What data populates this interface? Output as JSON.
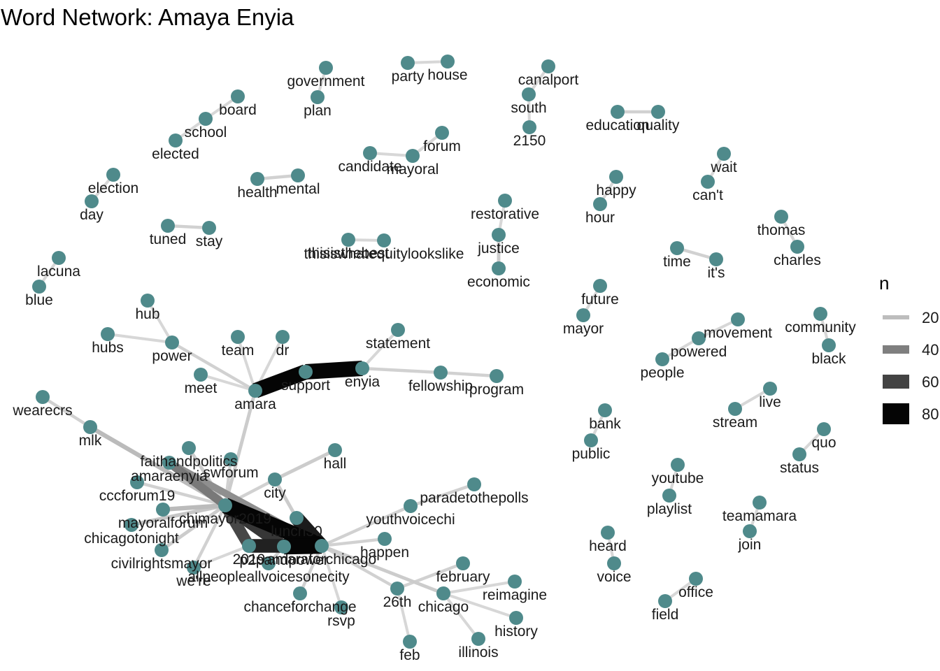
{
  "title": "Word Network: Amaya Enyia",
  "legend": {
    "title": "n",
    "items": [
      {
        "label": "20",
        "value": 20,
        "color": "#bdbdbd"
      },
      {
        "label": "40",
        "value": 40,
        "color": "#7f7f7f"
      },
      {
        "label": "60",
        "value": 60,
        "color": "#434343"
      },
      {
        "label": "80",
        "value": 80,
        "color": "#050505"
      }
    ]
  },
  "node_color": "#4f8a8b",
  "nodes": [
    {
      "id": "government",
      "label": "government"
    },
    {
      "id": "plan",
      "label": "plan"
    },
    {
      "id": "party",
      "label": "party"
    },
    {
      "id": "house",
      "label": "house"
    },
    {
      "id": "canalport",
      "label": "canalport"
    },
    {
      "id": "south",
      "label": "south"
    },
    {
      "id": "2150",
      "label": "2150"
    },
    {
      "id": "board",
      "label": "board"
    },
    {
      "id": "school",
      "label": "school"
    },
    {
      "id": "elected",
      "label": "elected"
    },
    {
      "id": "education",
      "label": "education"
    },
    {
      "id": "quality",
      "label": "quality"
    },
    {
      "id": "forum",
      "label": "forum"
    },
    {
      "id": "candidate",
      "label": "candidate"
    },
    {
      "id": "mayoral",
      "label": "mayoral"
    },
    {
      "id": "wait",
      "label": "wait"
    },
    {
      "id": "cant",
      "label": "can't"
    },
    {
      "id": "election",
      "label": "election"
    },
    {
      "id": "day",
      "label": "day"
    },
    {
      "id": "health",
      "label": "health"
    },
    {
      "id": "mental",
      "label": "mental"
    },
    {
      "id": "happy",
      "label": "happy"
    },
    {
      "id": "hour",
      "label": "hour"
    },
    {
      "id": "restorative",
      "label": "restorative"
    },
    {
      "id": "justice",
      "label": "justice"
    },
    {
      "id": "economic",
      "label": "economic"
    },
    {
      "id": "tuned",
      "label": "tuned"
    },
    {
      "id": "stay",
      "label": "stay"
    },
    {
      "id": "thomas",
      "label": "thomas"
    },
    {
      "id": "charles",
      "label": "charles"
    },
    {
      "id": "thisisthebest",
      "label": "thisisthebest"
    },
    {
      "id": "thisiswhatequitylookslike",
      "label": "thisiswhatequitylookslike"
    },
    {
      "id": "time",
      "label": "time"
    },
    {
      "id": "its",
      "label": "it's"
    },
    {
      "id": "lacuna",
      "label": "lacuna"
    },
    {
      "id": "blue",
      "label": "blue"
    },
    {
      "id": "future",
      "label": "future"
    },
    {
      "id": "mayor",
      "label": "mayor"
    },
    {
      "id": "hub",
      "label": "hub"
    },
    {
      "id": "hubs",
      "label": "hubs"
    },
    {
      "id": "power",
      "label": "power"
    },
    {
      "id": "team",
      "label": "team"
    },
    {
      "id": "dr",
      "label": "dr"
    },
    {
      "id": "statement",
      "label": "statement"
    },
    {
      "id": "movement",
      "label": "movement"
    },
    {
      "id": "community",
      "label": "community"
    },
    {
      "id": "black",
      "label": "black"
    },
    {
      "id": "powered",
      "label": "powered"
    },
    {
      "id": "people",
      "label": "people"
    },
    {
      "id": "meet",
      "label": "meet"
    },
    {
      "id": "support",
      "label": "support"
    },
    {
      "id": "enyia",
      "label": "enyia"
    },
    {
      "id": "fellowship",
      "label": "fellowship"
    },
    {
      "id": "program",
      "label": "program"
    },
    {
      "id": "amara",
      "label": "amara"
    },
    {
      "id": "live",
      "label": "live"
    },
    {
      "id": "stream",
      "label": "stream"
    },
    {
      "id": "wearecrs",
      "label": "wearecrs"
    },
    {
      "id": "bank",
      "label": "bank"
    },
    {
      "id": "public",
      "label": "public"
    },
    {
      "id": "quo",
      "label": "quo"
    },
    {
      "id": "status",
      "label": "status"
    },
    {
      "id": "mlk",
      "label": "mlk"
    },
    {
      "id": "faithandpolitics",
      "label": "faithandpolitics"
    },
    {
      "id": "hall",
      "label": "hall"
    },
    {
      "id": "swforum",
      "label": "swforum"
    },
    {
      "id": "amaraenyia",
      "label": "amaraenyia"
    },
    {
      "id": "youtube",
      "label": "youtube"
    },
    {
      "id": "playlist",
      "label": "playlist"
    },
    {
      "id": "city",
      "label": "city"
    },
    {
      "id": "cccforum19",
      "label": "cccforum19"
    },
    {
      "id": "paradetothepolls",
      "label": "paradetothepolls"
    },
    {
      "id": "teamamara",
      "label": "teamamara"
    },
    {
      "id": "join",
      "label": "join"
    },
    {
      "id": "youthvoicechi",
      "label": "youthvoicechi"
    },
    {
      "id": "mayoralforum",
      "label": "mayoralforum"
    },
    {
      "id": "chimayor2019",
      "label": "chimayor2019"
    },
    {
      "id": "lunch30",
      "label": "lunch30"
    },
    {
      "id": "chicagotonight",
      "label": "chicagotonight"
    },
    {
      "id": "heard",
      "label": "heard"
    },
    {
      "id": "happen",
      "label": "happen"
    },
    {
      "id": "voice",
      "label": "voice"
    },
    {
      "id": "civilrightsmayor",
      "label": "civilrightsmayor"
    },
    {
      "id": "amaraforchicago",
      "label": "amaraforchicago"
    },
    {
      "id": "p2pandpower",
      "label": "p2pandpower"
    },
    {
      "id": "2019",
      "label": "2019"
    },
    {
      "id": "were",
      "label": "we're"
    },
    {
      "id": "allpeopleallvoicesonecity",
      "label": "allpeopleallvoicesonecity"
    },
    {
      "id": "february",
      "label": "february"
    },
    {
      "id": "reimagine",
      "label": "reimagine"
    },
    {
      "id": "office",
      "label": "office"
    },
    {
      "id": "field",
      "label": "field"
    },
    {
      "id": "26th",
      "label": "26th"
    },
    {
      "id": "chicago",
      "label": "chicago"
    },
    {
      "id": "chanceforchange",
      "label": "chanceforchange"
    },
    {
      "id": "rsvp",
      "label": "rsvp"
    },
    {
      "id": "history",
      "label": "history"
    },
    {
      "id": "feb",
      "label": "feb"
    },
    {
      "id": "illinois",
      "label": "illinois"
    }
  ],
  "edges": [
    {
      "from": "government",
      "to": "plan",
      "n": 4
    },
    {
      "from": "party",
      "to": "house",
      "n": 4
    },
    {
      "from": "canalport",
      "to": "south",
      "n": 4
    },
    {
      "from": "south",
      "to": "2150",
      "n": 4
    },
    {
      "from": "board",
      "to": "school",
      "n": 4
    },
    {
      "from": "school",
      "to": "elected",
      "n": 4
    },
    {
      "from": "education",
      "to": "quality",
      "n": 6
    },
    {
      "from": "forum",
      "to": "mayoral",
      "n": 4
    },
    {
      "from": "candidate",
      "to": "mayoral",
      "n": 4
    },
    {
      "from": "wait",
      "to": "cant",
      "n": 4
    },
    {
      "from": "election",
      "to": "day",
      "n": 4
    },
    {
      "from": "health",
      "to": "mental",
      "n": 6
    },
    {
      "from": "happy",
      "to": "hour",
      "n": 4
    },
    {
      "from": "restorative",
      "to": "justice",
      "n": 4
    },
    {
      "from": "justice",
      "to": "economic",
      "n": 8
    },
    {
      "from": "tuned",
      "to": "stay",
      "n": 6
    },
    {
      "from": "thomas",
      "to": "charles",
      "n": 4
    },
    {
      "from": "thisisthebest",
      "to": "thisiswhatequitylookslike",
      "n": 4
    },
    {
      "from": "time",
      "to": "its",
      "n": 6
    },
    {
      "from": "lacuna",
      "to": "blue",
      "n": 4
    },
    {
      "from": "future",
      "to": "mayor",
      "n": 4
    },
    {
      "from": "hub",
      "to": "power",
      "n": 4
    },
    {
      "from": "hubs",
      "to": "power",
      "n": 4
    },
    {
      "from": "power",
      "to": "amara",
      "n": 6
    },
    {
      "from": "team",
      "to": "amara",
      "n": 4
    },
    {
      "from": "dr",
      "to": "amara",
      "n": 4
    },
    {
      "from": "meet",
      "to": "amara",
      "n": 4
    },
    {
      "from": "statement",
      "to": "enyia",
      "n": 4
    },
    {
      "from": "support",
      "to": "amara",
      "n": 80
    },
    {
      "from": "support",
      "to": "enyia",
      "n": 80
    },
    {
      "from": "enyia",
      "to": "fellowship",
      "n": 6
    },
    {
      "from": "fellowship",
      "to": "program",
      "n": 6
    },
    {
      "from": "movement",
      "to": "powered",
      "n": 4
    },
    {
      "from": "powered",
      "to": "people",
      "n": 4
    },
    {
      "from": "community",
      "to": "black",
      "n": 4
    },
    {
      "from": "live",
      "to": "stream",
      "n": 4
    },
    {
      "from": "bank",
      "to": "public",
      "n": 4
    },
    {
      "from": "quo",
      "to": "status",
      "n": 4
    },
    {
      "from": "youtube",
      "to": "playlist",
      "n": 4
    },
    {
      "from": "teamamara",
      "to": "join",
      "n": 4
    },
    {
      "from": "heard",
      "to": "voice",
      "n": 4
    },
    {
      "from": "office",
      "to": "field",
      "n": 4
    },
    {
      "from": "amara",
      "to": "chimayor2019",
      "n": 8
    },
    {
      "from": "wearecrs",
      "to": "mlk",
      "n": 6
    },
    {
      "from": "mlk",
      "to": "chimayor2019",
      "n": 14
    },
    {
      "from": "faithandpolitics",
      "to": "chimayor2019",
      "n": 8
    },
    {
      "from": "swforum",
      "to": "chimayor2019",
      "n": 6
    },
    {
      "from": "amaraenyia",
      "to": "chimayor2019",
      "n": 38
    },
    {
      "from": "amaraenyia",
      "to": "amaraforchicago",
      "n": 30
    },
    {
      "from": "cccforum19",
      "to": "chimayor2019",
      "n": 6
    },
    {
      "from": "mayoralforum",
      "to": "chimayor2019",
      "n": 14
    },
    {
      "from": "chicagotonight",
      "to": "chimayor2019",
      "n": 10
    },
    {
      "from": "civilrightsmayor",
      "to": "chimayor2019",
      "n": 8
    },
    {
      "from": "were",
      "to": "chimayor2019",
      "n": 6
    },
    {
      "from": "chimayor2019",
      "to": "amaraforchicago",
      "n": 82
    },
    {
      "from": "chimayor2019",
      "to": "p2pandpower",
      "n": 62
    },
    {
      "from": "chimayor2019",
      "to": "2019",
      "n": 56
    },
    {
      "from": "p2pandpower",
      "to": "amaraforchicago",
      "n": 82
    },
    {
      "from": "2019",
      "to": "amaraforchicago",
      "n": 70
    },
    {
      "from": "lunch30",
      "to": "amaraforchicago",
      "n": 72
    },
    {
      "from": "city",
      "to": "lunch30",
      "n": 8
    },
    {
      "from": "hall",
      "to": "city",
      "n": 8
    },
    {
      "from": "city",
      "to": "chimayor2019",
      "n": 6
    },
    {
      "from": "paradetothepolls",
      "to": "youthvoicechi",
      "n": 6
    },
    {
      "from": "youthvoicechi",
      "to": "amaraforchicago",
      "n": 6
    },
    {
      "from": "happen",
      "to": "amaraforchicago",
      "n": 6
    },
    {
      "from": "allpeopleallvoicesonecity",
      "to": "p2pandpower",
      "n": 6
    },
    {
      "from": "chanceforchange",
      "to": "amaraforchicago",
      "n": 6
    },
    {
      "from": "rsvp",
      "to": "amaraforchicago",
      "n": 4
    },
    {
      "from": "26th",
      "to": "amaraforchicago",
      "n": 6
    },
    {
      "from": "chicago",
      "to": "amaraforchicago",
      "n": 8
    },
    {
      "from": "february",
      "to": "26th",
      "n": 6
    },
    {
      "from": "26th",
      "to": "feb",
      "n": 4
    },
    {
      "from": "chicago",
      "to": "reimagine",
      "n": 4
    },
    {
      "from": "chicago",
      "to": "history",
      "n": 4
    },
    {
      "from": "chicago",
      "to": "illinois",
      "n": 4
    },
    {
      "from": "were",
      "to": "2019",
      "n": 4
    }
  ]
}
